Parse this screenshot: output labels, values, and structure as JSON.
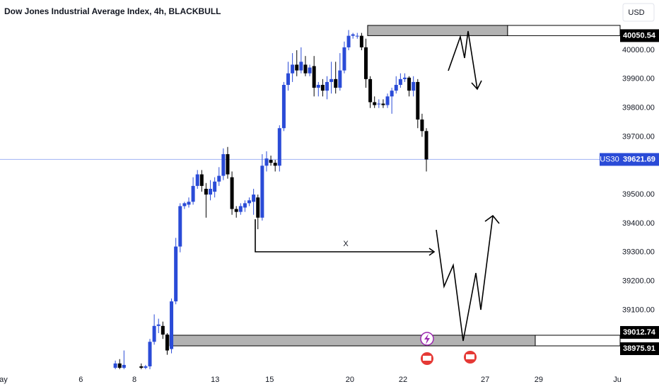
{
  "chart_data": {
    "type": "candlestick",
    "title": "Dow Jones Industrial Average Index, 4h, BLACKBULL",
    "currency": "USD",
    "symbol": "US30",
    "last_price": 39621.69,
    "annotation": "X",
    "up_color": "#2a4bd7",
    "down_color": "#000000",
    "ylim": [
      38900,
      40174
    ],
    "yticks": [
      {
        "value": 39100,
        "label": "39100.00"
      },
      {
        "value": 39200,
        "label": "39200.00"
      },
      {
        "value": 39300,
        "label": "39300.00"
      },
      {
        "value": 39400,
        "label": "39400.00"
      },
      {
        "value": 39500,
        "label": "39500.00"
      },
      {
        "value": 39700,
        "label": "39700.00"
      },
      {
        "value": 39800,
        "label": "39800.00"
      },
      {
        "value": 39900,
        "label": "39900.00"
      },
      {
        "value": 40000,
        "label": "40000.00"
      }
    ],
    "xlim": [
      -26.7,
      124.7
    ],
    "xticks": [
      {
        "value": -25.9,
        "label": "ay"
      },
      {
        "value": -8.0,
        "label": "6"
      },
      {
        "value": 4.4,
        "label": "8"
      },
      {
        "value": 23.1,
        "label": "13"
      },
      {
        "value": 35.7,
        "label": "15"
      },
      {
        "value": 54.3,
        "label": "20"
      },
      {
        "value": 66.6,
        "label": "22"
      },
      {
        "value": 85.6,
        "label": "27"
      },
      {
        "value": 98.0,
        "label": "29"
      },
      {
        "value": 116.2,
        "label": "Ju"
      }
    ],
    "zones": [
      {
        "high": 40086,
        "low": 40050.54,
        "start": 58.4,
        "shade_end": 90.8
      },
      {
        "high": 39012.74,
        "low": 38975.91,
        "start": 12.6,
        "shade_end": 97.2
      }
    ],
    "x": [
      0,
      1,
      2,
      6,
      7,
      8,
      9,
      10,
      11,
      12,
      13,
      14,
      15,
      16,
      17,
      18,
      19,
      20,
      21,
      22,
      23,
      24,
      25,
      26,
      27,
      28,
      29,
      30,
      31,
      32,
      33,
      34,
      35,
      36,
      37,
      38,
      39,
      40,
      41,
      42,
      43,
      44,
      45,
      46,
      47,
      48,
      49,
      50,
      51,
      52,
      53,
      54,
      55,
      56,
      57,
      58,
      59,
      60,
      61,
      62,
      63,
      64,
      65,
      66,
      67,
      68,
      69,
      70,
      71,
      72
    ],
    "open": [
      38900,
      38915,
      38900,
      38905,
      38900,
      38905,
      38990,
      39045,
      39045,
      39015,
      38965,
      39130,
      39320,
      39460,
      39465,
      39475,
      39530,
      39570,
      39520,
      39500,
      39510,
      39545,
      39565,
      39640,
      39560,
      39450,
      39440,
      39455,
      39470,
      39475,
      39490,
      39420,
      39600,
      39620,
      39610,
      39600,
      39730,
      39880,
      39920,
      39950,
      39930,
      39950,
      39920,
      39945,
      39870,
      39880,
      39860,
      39890,
      39900,
      39870,
      39930,
      40010,
      40050,
      40050,
      40050,
      40010,
      39900,
      39820,
      39815,
      39815,
      39810,
      39840,
      39860,
      39880,
      39900,
      39905,
      39860,
      39890,
      39760,
      39720
    ],
    "high": [
      38925,
      38930,
      38960,
      38915,
      38910,
      39000,
      39085,
      39070,
      39060,
      39020,
      39140,
      39350,
      39470,
      39475,
      39490,
      39560,
      39585,
      39585,
      39540,
      39550,
      39560,
      39595,
      39660,
      39665,
      39580,
      39460,
      39470,
      39480,
      39490,
      39520,
      39500,
      39640,
      39650,
      39635,
      39620,
      39740,
      39890,
      39960,
      39990,
      40000,
      40010,
      39980,
      39950,
      39980,
      39890,
      39900,
      39910,
      39960,
      39960,
      39990,
      40030,
      40070,
      40060,
      40060,
      40060,
      40040,
      39910,
      39840,
      39830,
      39830,
      39850,
      39870,
      39910,
      39920,
      39920,
      39910,
      39910,
      39900,
      39780,
      39730
    ],
    "low": [
      38895,
      38895,
      38895,
      38895,
      38895,
      38895,
      38980,
      39020,
      39000,
      38945,
      38950,
      39120,
      39300,
      39450,
      39455,
      39465,
      39520,
      39510,
      39420,
      39480,
      39490,
      39530,
      39550,
      39555,
      39430,
      39420,
      39430,
      39440,
      39460,
      39430,
      39380,
      39410,
      39580,
      39600,
      39580,
      39580,
      39720,
      39860,
      39890,
      39910,
      39920,
      39910,
      39910,
      39840,
      39840,
      39840,
      39830,
      39850,
      39850,
      39860,
      39920,
      40000,
      40040,
      40040,
      40000,
      39870,
      39800,
      39800,
      39800,
      39800,
      39800,
      39780,
      39850,
      39870,
      39890,
      39840,
      39840,
      39730,
      39700,
      39580
    ],
    "close": [
      38915,
      38900,
      38910,
      38900,
      38905,
      38990,
      39045,
      39050,
      39015,
      38960,
      39130,
      39320,
      39460,
      39470,
      39475,
      39530,
      39570,
      39530,
      39500,
      39520,
      39545,
      39565,
      39640,
      39570,
      39450,
      39440,
      39460,
      39470,
      39480,
      39500,
      39420,
      39600,
      39625,
      39610,
      39600,
      39730,
      39880,
      39920,
      39950,
      39930,
      39960,
      39920,
      39940,
      39870,
      39880,
      39860,
      39890,
      39900,
      39870,
      39930,
      40010,
      40050,
      40055,
      40050,
      40010,
      39900,
      39820,
      39810,
      39815,
      39810,
      39840,
      39860,
      39880,
      39900,
      39905,
      39860,
      39890,
      39760,
      39720,
      39621.69
    ]
  }
}
